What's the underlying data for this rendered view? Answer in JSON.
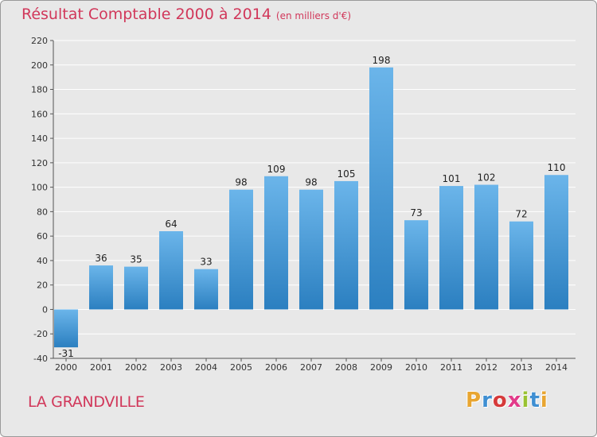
{
  "header": {
    "title": "Résultat Comptable 2000 à 2014",
    "subtitle": "(en milliers d'€)"
  },
  "footer": {
    "place": "LA GRANDVILLE",
    "logo_text": "Proxiti",
    "logo_colors": [
      "#e8a531",
      "#3f8fd2",
      "#d63a3a",
      "#e23b8a",
      "#9ac232",
      "#3f8fd2",
      "#e8a531"
    ]
  },
  "colors": {
    "bar_light": "#6bb5ea",
    "bar_dark": "#2b7fc0",
    "grid": "#ffffff",
    "title": "#d1375a",
    "plot_bg": "#e8e8e8"
  },
  "chart_data": {
    "type": "bar",
    "title": "Résultat Comptable 2000 à 2014",
    "subtitle": "(en milliers d'€)",
    "xlabel": "",
    "ylabel": "",
    "categories": [
      "2000",
      "2001",
      "2002",
      "2003",
      "2004",
      "2005",
      "2006",
      "2007",
      "2008",
      "2009",
      "2010",
      "2011",
      "2012",
      "2013",
      "2014"
    ],
    "values": [
      -31,
      36,
      35,
      64,
      33,
      98,
      109,
      98,
      105,
      198,
      73,
      101,
      102,
      72,
      110
    ],
    "ylim": [
      -40,
      220
    ],
    "yticks": [
      -40,
      -20,
      0,
      20,
      40,
      60,
      80,
      100,
      120,
      140,
      160,
      180,
      200,
      220
    ],
    "grid": true,
    "legend": "none"
  }
}
